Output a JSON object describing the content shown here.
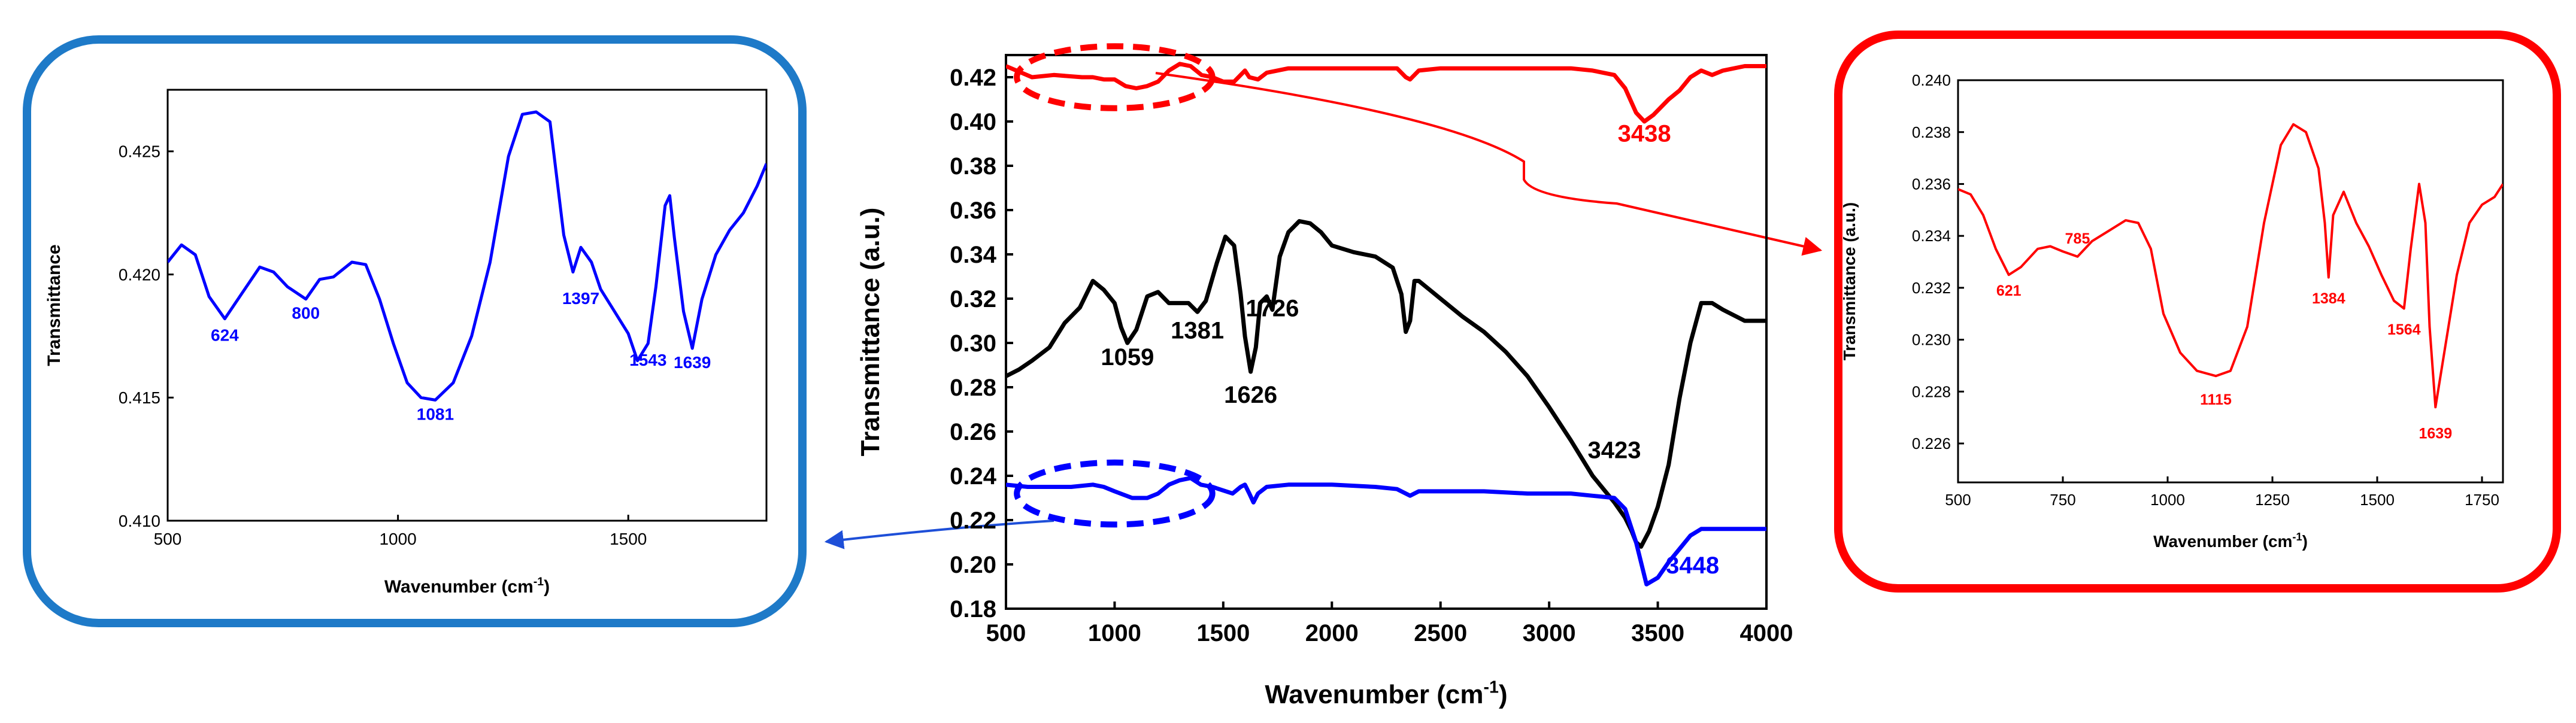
{
  "colors": {
    "red": "#ff0000",
    "black": "#000000",
    "blue": "#0000ff",
    "frame_blue": "#1e7ac8",
    "frame_red": "#ff0000"
  },
  "chart_data": [
    {
      "id": "main",
      "type": "line",
      "title": "",
      "xlabel": "Wavenumber (cm",
      "xlabel_sup": "-1",
      "xlabel_end": ")",
      "ylabel": "Transmittance (a.u.)",
      "xlim": [
        500,
        4000
      ],
      "ylim": [
        0.18,
        0.43
      ],
      "xticks": [
        500,
        1000,
        1500,
        2000,
        2500,
        3000,
        3500,
        4000
      ],
      "xtick_labels": [
        "500",
        "1000",
        "1500",
        "2000",
        "2500",
        "3000",
        "3500",
        "4000"
      ],
      "yticks": [
        0.18,
        0.2,
        0.22,
        0.24,
        0.26,
        0.28,
        0.3,
        0.32,
        0.34,
        0.36,
        0.38,
        0.4,
        0.42
      ],
      "ytick_labels": [
        "0.18",
        "0.20",
        "0.22",
        "0.24",
        "0.26",
        "0.28",
        "0.30",
        "0.32",
        "0.34",
        "0.36",
        "0.38",
        "0.40",
        "0.42"
      ],
      "series": [
        {
          "name": "red",
          "color": "#ff0000",
          "x": [
            500,
            620,
            720,
            850,
            900,
            950,
            1000,
            1050,
            1100,
            1150,
            1200,
            1250,
            1300,
            1350,
            1400,
            1450,
            1500,
            1550,
            1600,
            1620,
            1660,
            1700,
            1800,
            2000,
            2200,
            2300,
            2340,
            2360,
            2400,
            2500,
            2700,
            2900,
            3100,
            3200,
            3300,
            3350,
            3400,
            3438,
            3480,
            3550,
            3600,
            3650,
            3700,
            3750,
            3800,
            3900,
            4000
          ],
          "y": [
            0.425,
            0.42,
            0.421,
            0.42,
            0.42,
            0.419,
            0.419,
            0.416,
            0.415,
            0.416,
            0.418,
            0.423,
            0.426,
            0.425,
            0.421,
            0.42,
            0.418,
            0.418,
            0.423,
            0.42,
            0.419,
            0.422,
            0.424,
            0.424,
            0.424,
            0.424,
            0.42,
            0.419,
            0.423,
            0.424,
            0.424,
            0.424,
            0.424,
            0.423,
            0.421,
            0.415,
            0.404,
            0.4,
            0.403,
            0.41,
            0.414,
            0.42,
            0.423,
            0.421,
            0.423,
            0.425,
            0.425
          ]
        },
        {
          "name": "black",
          "color": "#000000",
          "x": [
            500,
            560,
            620,
            700,
            770,
            840,
            900,
            950,
            1000,
            1030,
            1059,
            1100,
            1150,
            1200,
            1250,
            1300,
            1340,
            1381,
            1420,
            1470,
            1510,
            1550,
            1580,
            1600,
            1626,
            1650,
            1670,
            1700,
            1726,
            1760,
            1800,
            1850,
            1900,
            1950,
            2000,
            2100,
            2200,
            2280,
            2320,
            2340,
            2360,
            2380,
            2400,
            2450,
            2500,
            2600,
            2700,
            2800,
            2900,
            3000,
            3100,
            3200,
            3300,
            3350,
            3380,
            3400,
            3423,
            3460,
            3500,
            3550,
            3600,
            3650,
            3700,
            3750,
            3800,
            3900,
            4000
          ],
          "y": [
            0.285,
            0.288,
            0.292,
            0.298,
            0.309,
            0.316,
            0.328,
            0.324,
            0.318,
            0.307,
            0.3,
            0.306,
            0.321,
            0.323,
            0.318,
            0.318,
            0.318,
            0.314,
            0.319,
            0.336,
            0.348,
            0.344,
            0.322,
            0.303,
            0.287,
            0.298,
            0.318,
            0.321,
            0.315,
            0.339,
            0.35,
            0.355,
            0.354,
            0.35,
            0.344,
            0.341,
            0.339,
            0.334,
            0.322,
            0.305,
            0.31,
            0.328,
            0.328,
            0.324,
            0.32,
            0.312,
            0.305,
            0.296,
            0.285,
            0.271,
            0.256,
            0.24,
            0.228,
            0.221,
            0.215,
            0.21,
            0.208,
            0.215,
            0.226,
            0.245,
            0.275,
            0.3,
            0.318,
            0.318,
            0.315,
            0.31,
            0.31
          ]
        },
        {
          "name": "blue",
          "color": "#0000ff",
          "x": [
            500,
            600,
            700,
            800,
            900,
            950,
            1000,
            1081,
            1150,
            1200,
            1250,
            1300,
            1350,
            1397,
            1450,
            1543,
            1580,
            1600,
            1620,
            1639,
            1660,
            1700,
            1800,
            2000,
            2200,
            2300,
            2340,
            2360,
            2400,
            2500,
            2700,
            2900,
            3100,
            3200,
            3300,
            3350,
            3400,
            3448,
            3500,
            3550,
            3600,
            3650,
            3700,
            3800,
            3900,
            4000
          ],
          "y": [
            0.236,
            0.235,
            0.235,
            0.235,
            0.236,
            0.235,
            0.233,
            0.23,
            0.23,
            0.232,
            0.236,
            0.238,
            0.239,
            0.236,
            0.235,
            0.232,
            0.235,
            0.236,
            0.232,
            0.228,
            0.232,
            0.235,
            0.236,
            0.236,
            0.235,
            0.234,
            0.232,
            0.231,
            0.233,
            0.233,
            0.233,
            0.232,
            0.232,
            0.231,
            0.23,
            0.225,
            0.21,
            0.191,
            0.194,
            0.201,
            0.207,
            0.213,
            0.216,
            0.216,
            0.216,
            0.216
          ]
        }
      ],
      "annotations": [
        {
          "text": "3438",
          "x": 3438,
          "y": 0.391,
          "color": "#ff0000"
        },
        {
          "text": "1059",
          "x": 1059,
          "y": 0.29,
          "color": "#000000"
        },
        {
          "text": "1381",
          "x": 1381,
          "y": 0.302,
          "color": "#000000"
        },
        {
          "text": "1726",
          "x": 1726,
          "y": 0.312,
          "color": "#000000"
        },
        {
          "text": "1626",
          "x": 1626,
          "y": 0.273,
          "color": "#000000"
        },
        {
          "text": "3423",
          "x": 3300,
          "y": 0.248,
          "color": "#000000"
        },
        {
          "text": "3448",
          "x": 3660,
          "y": 0.196,
          "color": "#0000ff"
        }
      ],
      "highlights": [
        {
          "color": "#ff0000",
          "cx": 1000,
          "cy": 0.42,
          "rx": 450,
          "ry": 0.014
        },
        {
          "color": "#0000ff",
          "cx": 1000,
          "cy": 0.232,
          "rx": 450,
          "ry": 0.014
        }
      ]
    },
    {
      "id": "inset-blue",
      "type": "line",
      "title": "",
      "xlabel": "Wavenumber (cm",
      "xlabel_sup": "-1",
      "xlabel_end": ")",
      "ylabel": "Transmittance",
      "xlim": [
        500,
        1800
      ],
      "ylim": [
        0.41,
        0.4275
      ],
      "xticks": [
        500,
        1000,
        1500
      ],
      "xtick_labels": [
        "500",
        "1000",
        "1500"
      ],
      "yticks": [
        0.41,
        0.415,
        0.42,
        0.425
      ],
      "ytick_labels": [
        "0.410",
        "0.415",
        "0.420",
        "0.425"
      ],
      "series": [
        {
          "name": "blue-detail",
          "color": "#0000ff",
          "x": [
            500,
            530,
            560,
            590,
            624,
            660,
            700,
            730,
            760,
            800,
            830,
            860,
            900,
            930,
            960,
            990,
            1020,
            1050,
            1081,
            1120,
            1160,
            1200,
            1240,
            1270,
            1300,
            1330,
            1360,
            1380,
            1397,
            1420,
            1440,
            1470,
            1500,
            1520,
            1543,
            1560,
            1580,
            1590,
            1600,
            1620,
            1639,
            1660,
            1690,
            1720,
            1750,
            1780,
            1800
          ],
          "y": [
            0.4205,
            0.4212,
            0.4208,
            0.4191,
            0.4182,
            0.4192,
            0.4203,
            0.4201,
            0.4195,
            0.419,
            0.4198,
            0.4199,
            0.4205,
            0.4204,
            0.419,
            0.4172,
            0.4156,
            0.415,
            0.4149,
            0.4156,
            0.4175,
            0.4205,
            0.4248,
            0.4265,
            0.4266,
            0.4262,
            0.4216,
            0.4201,
            0.4211,
            0.4205,
            0.4194,
            0.4185,
            0.4176,
            0.4165,
            0.4172,
            0.4195,
            0.4228,
            0.4232,
            0.4215,
            0.4185,
            0.417,
            0.419,
            0.4208,
            0.4218,
            0.4225,
            0.4236,
            0.4245
          ]
        }
      ],
      "annotations": [
        {
          "text": "624",
          "x": 624,
          "y": 0.4173,
          "color": "#0000ff"
        },
        {
          "text": "800",
          "x": 800,
          "y": 0.4182,
          "color": "#0000ff"
        },
        {
          "text": "1081",
          "x": 1081,
          "y": 0.4141,
          "color": "#0000ff"
        },
        {
          "text": "1397",
          "x": 1397,
          "y": 0.4188,
          "color": "#0000ff"
        },
        {
          "text": "1543",
          "x": 1543,
          "y": 0.4163,
          "color": "#0000ff"
        },
        {
          "text": "1639",
          "x": 1639,
          "y": 0.4162,
          "color": "#0000ff"
        }
      ]
    },
    {
      "id": "inset-red",
      "type": "line",
      "title": "",
      "xlabel": "Wavenumber (cm",
      "xlabel_sup": "-1",
      "xlabel_end": ")",
      "ylabel": "Transmittance (a.u.)",
      "xlim": [
        500,
        1800
      ],
      "ylim": [
        0.2245,
        0.24
      ],
      "xticks": [
        500,
        750,
        1000,
        1250,
        1500,
        1750
      ],
      "xtick_labels": [
        "500",
        "750",
        "1000",
        "1250",
        "1500",
        "1750"
      ],
      "yticks": [
        0.226,
        0.228,
        0.23,
        0.232,
        0.234,
        0.236,
        0.238,
        0.24
      ],
      "ytick_labels": [
        "0.226",
        "0.228",
        "0.230",
        "0.232",
        "0.234",
        "0.236",
        "0.238",
        "0.240"
      ],
      "series": [
        {
          "name": "red-detail",
          "color": "#ff0000",
          "x": [
            500,
            530,
            560,
            590,
            621,
            650,
            690,
            720,
            750,
            785,
            820,
            860,
            900,
            930,
            960,
            990,
            1030,
            1070,
            1115,
            1150,
            1190,
            1230,
            1270,
            1300,
            1330,
            1360,
            1375,
            1384,
            1395,
            1420,
            1450,
            1480,
            1510,
            1540,
            1564,
            1580,
            1600,
            1615,
            1625,
            1639,
            1660,
            1690,
            1720,
            1750,
            1780,
            1800
          ],
          "y": [
            0.2358,
            0.2356,
            0.2348,
            0.2335,
            0.2325,
            0.2328,
            0.2335,
            0.2336,
            0.2334,
            0.2332,
            0.2338,
            0.2342,
            0.2346,
            0.2345,
            0.2335,
            0.231,
            0.2295,
            0.2288,
            0.2286,
            0.2288,
            0.2305,
            0.2345,
            0.2375,
            0.2383,
            0.238,
            0.2366,
            0.2345,
            0.2324,
            0.2348,
            0.2357,
            0.2345,
            0.2336,
            0.2325,
            0.2315,
            0.2312,
            0.2335,
            0.236,
            0.2345,
            0.2305,
            0.2274,
            0.2295,
            0.2325,
            0.2345,
            0.2352,
            0.2355,
            0.236
          ]
        }
      ],
      "annotations": [
        {
          "text": "621",
          "x": 621,
          "y": 0.2317,
          "color": "#ff0000"
        },
        {
          "text": "785",
          "x": 785,
          "y": 0.2337,
          "color": "#ff0000"
        },
        {
          "text": "1115",
          "x": 1115,
          "y": 0.2275,
          "color": "#ff0000"
        },
        {
          "text": "1384",
          "x": 1384,
          "y": 0.2314,
          "color": "#ff0000"
        },
        {
          "text": "1564",
          "x": 1564,
          "y": 0.2302,
          "color": "#ff0000"
        },
        {
          "text": "1639",
          "x": 1639,
          "y": 0.2262,
          "color": "#ff0000"
        }
      ]
    }
  ]
}
